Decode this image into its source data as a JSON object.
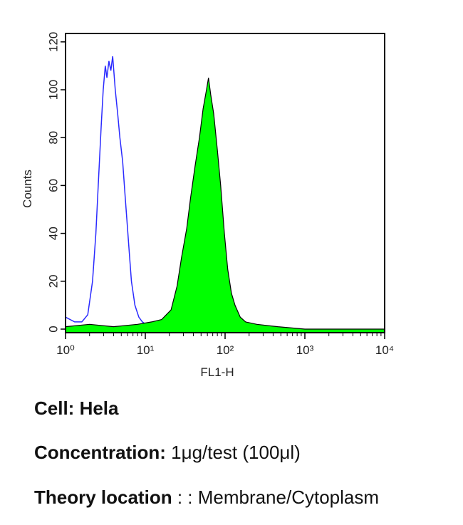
{
  "chart_data": {
    "type": "line",
    "x_scale": "log",
    "y_label": "Counts",
    "x_label": "FL1-H",
    "xlim": [
      1,
      10000
    ],
    "xticks": [
      {
        "value": 1,
        "label": "10⁰"
      },
      {
        "value": 10,
        "label": "10¹"
      },
      {
        "value": 100,
        "label": "10²"
      },
      {
        "value": 1000,
        "label": "10³"
      },
      {
        "value": 10000,
        "label": "10⁴"
      }
    ],
    "ylim": [
      0,
      125
    ],
    "yticks": [
      0,
      20,
      40,
      60,
      80,
      100,
      120
    ],
    "series": [
      {
        "color": "#2a2aff",
        "fill": false,
        "x": [
          1,
          1.3,
          1.6,
          1.9,
          2.18,
          2.4,
          2.57,
          2.8,
          2.97,
          3.15,
          3.3,
          3.5,
          3.7,
          3.9,
          4.2,
          4.5,
          4.8,
          5.2,
          5.6,
          5.9,
          6.3,
          6.7,
          7.4,
          8.3,
          9.2,
          10.2,
          11.5
        ],
        "values": [
          5,
          3,
          3,
          6,
          20,
          40,
          60,
          85,
          100,
          110,
          105,
          112,
          108,
          114,
          100,
          90,
          80,
          70,
          55,
          45,
          32,
          20,
          10,
          5,
          3,
          2,
          1
        ]
      },
      {
        "color": "#00ff00",
        "stroke": "#000000",
        "fill": true,
        "x": [
          1,
          2,
          4,
          8,
          12,
          16,
          21,
          25,
          28.5,
          33,
          37,
          42,
          47.7,
          53,
          58.5,
          62,
          66,
          72,
          80,
          88,
          98,
          108,
          120,
          133,
          155,
          181,
          250,
          457,
          1000,
          10000
        ],
        "values": [
          1,
          2,
          1,
          2,
          3,
          4,
          8,
          18,
          30,
          42,
          55,
          68,
          80,
          92,
          100,
          105,
          98,
          90,
          75,
          60,
          40,
          25,
          15,
          10,
          5,
          3,
          2,
          1,
          0,
          0
        ]
      }
    ]
  },
  "caption": [
    {
      "label": "Cell: Hela"
    },
    {
      "label": "Concentration:",
      "value": "1μg/test (100μl)"
    },
    {
      "label": "Theory location",
      "value": ": : Membrane/Cytoplasm"
    }
  ]
}
